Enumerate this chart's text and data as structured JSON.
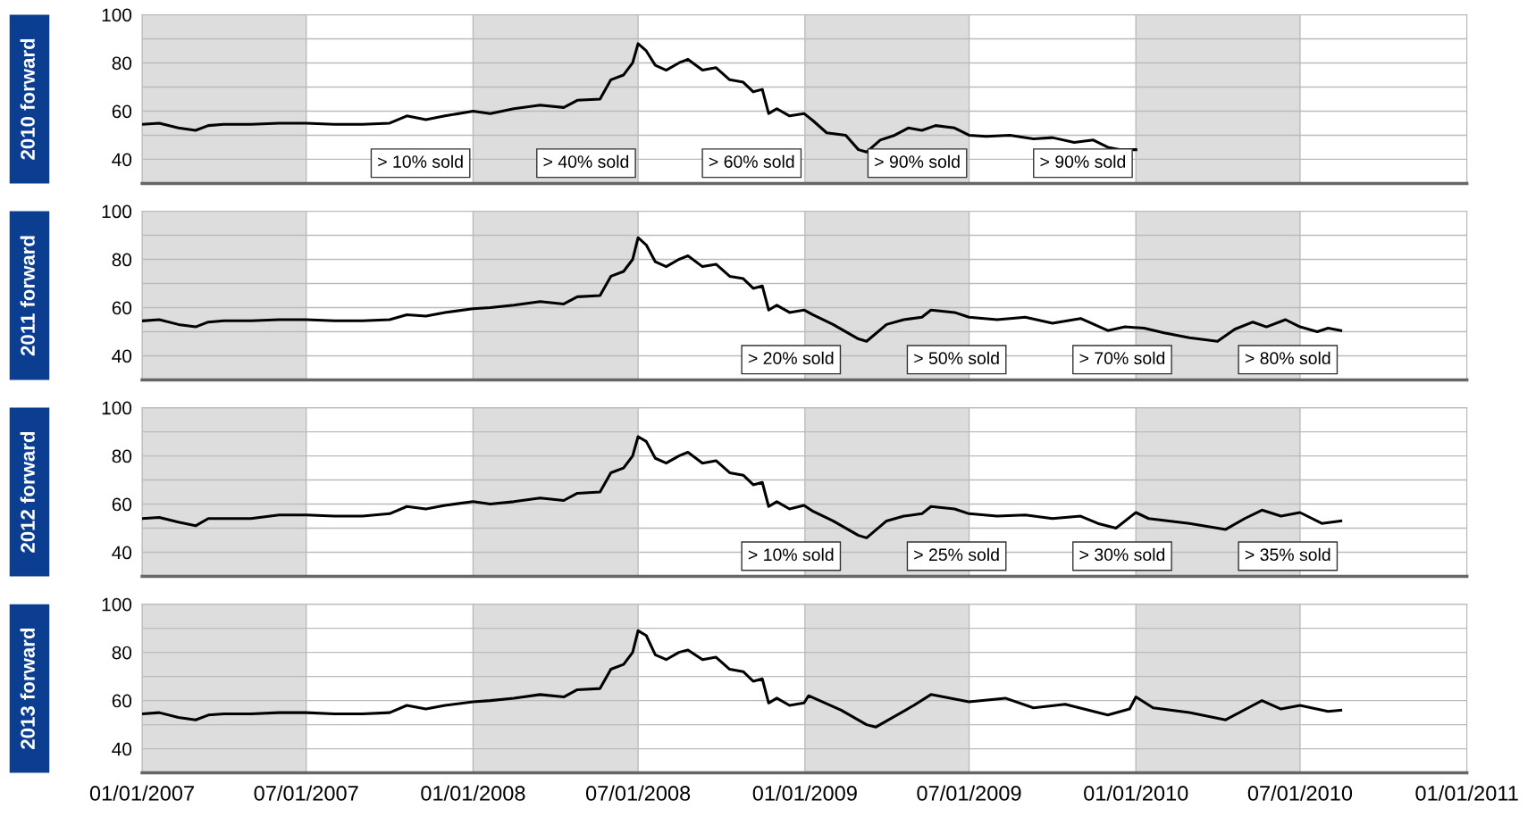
{
  "chart_data": [
    {
      "type": "line",
      "ylabel": "2010 forward",
      "xlim": [
        "2007-01-01",
        "2011-01-01"
      ],
      "ylim": [
        30,
        100
      ],
      "grid": true,
      "tick_labels": "y",
      "marker": "none",
      "line_style": "solid",
      "yticks": [
        40,
        {
          "value": 50,
          "label": null
        },
        60,
        {
          "value": 70,
          "label": null
        },
        80,
        {
          "value": 90,
          "label": null
        },
        100
      ],
      "xticks": [
        {
          "value": "2007-01-01",
          "label": null
        },
        {
          "value": "2007-07-01",
          "label": null
        },
        {
          "value": "2008-01-01",
          "label": null
        },
        {
          "value": "2008-07-01",
          "label": null
        },
        {
          "value": "2009-01-01",
          "label": null
        },
        {
          "value": "2009-07-01",
          "label": null
        },
        {
          "value": "2010-01-01",
          "label": null
        },
        {
          "value": "2010-07-01",
          "label": null
        },
        {
          "value": "2011-01-01",
          "label": null
        }
      ],
      "bands": [
        {
          "axis": "x",
          "from": "2007-01-01",
          "to": "2007-07-01",
          "color": "#dddddd"
        },
        {
          "axis": "x",
          "from": "2008-01-01",
          "to": "2008-07-01",
          "color": "#dddddd"
        },
        {
          "axis": "x",
          "from": "2009-01-01",
          "to": "2009-07-01",
          "color": "#dddddd"
        },
        {
          "axis": "x",
          "from": "2010-01-01",
          "to": "2010-07-01",
          "color": "#dddddd"
        }
      ],
      "annotations": [
        "> 10% sold",
        "> 40% sold",
        "> 60% sold",
        "> 90% sold",
        "> 90% sold"
      ],
      "series": [
        {
          "color": "#000000",
          "x": [
            "2007-01-01",
            "2007-01-20",
            "2007-02-10",
            "2007-03-01",
            "2007-03-15",
            "2007-04-01",
            "2007-05-01",
            "2007-06-01",
            "2007-07-01",
            "2007-08-01",
            "2007-09-01",
            "2007-10-01",
            "2007-10-20",
            "2007-11-10",
            "2007-12-01",
            "2008-01-01",
            "2008-01-20",
            "2008-02-15",
            "2008-03-15",
            "2008-04-10",
            "2008-04-25",
            "2008-05-20",
            "2008-06-01",
            "2008-06-15",
            "2008-06-25",
            "2008-07-01",
            "2008-07-10",
            "2008-07-20",
            "2008-08-01",
            "2008-08-15",
            "2008-08-25",
            "2008-09-10",
            "2008-09-25",
            "2008-10-10",
            "2008-10-25",
            "2008-11-05",
            "2008-11-15",
            "2008-11-22",
            "2008-12-01",
            "2008-12-15",
            "2008-12-31",
            "2009-01-10",
            "2009-01-25",
            "2009-02-15",
            "2009-03-01",
            "2009-03-10",
            "2009-03-25",
            "2009-04-10",
            "2009-04-25",
            "2009-05-10",
            "2009-05-25",
            "2009-06-15",
            "2009-07-01",
            "2009-07-20",
            "2009-08-15",
            "2009-09-10",
            "2009-10-01",
            "2009-10-25",
            "2009-11-15",
            "2009-12-01",
            "2009-12-15",
            "2010-01-01"
          ],
          "values": [
            54.5,
            55,
            53,
            52,
            54,
            54.5,
            54.5,
            55,
            55,
            54.5,
            54.5,
            55,
            58,
            56.5,
            58,
            60,
            59,
            61,
            62.5,
            61.5,
            64.5,
            65,
            73,
            75,
            80,
            88,
            85,
            79,
            77,
            80,
            81.5,
            77,
            78,
            73,
            72,
            68,
            69,
            59,
            61,
            58,
            59,
            56,
            51,
            50,
            44,
            43,
            48,
            50,
            53,
            52,
            54,
            53,
            50,
            49.5,
            50,
            48.5,
            49,
            47,
            48,
            45,
            44,
            44
          ]
        }
      ]
    },
    {
      "type": "line",
      "ylabel": "2011 forward",
      "xlim": [
        "2007-01-01",
        "2011-01-01"
      ],
      "ylim": [
        30,
        100
      ],
      "grid": true,
      "tick_labels": "y",
      "marker": "none",
      "line_style": "solid",
      "yticks": [
        40,
        {
          "value": 50,
          "label": null
        },
        60,
        {
          "value": 70,
          "label": null
        },
        80,
        {
          "value": 90,
          "label": null
        },
        100
      ],
      "xticks": [
        {
          "value": "2007-01-01",
          "label": null
        },
        {
          "value": "2007-07-01",
          "label": null
        },
        {
          "value": "2008-01-01",
          "label": null
        },
        {
          "value": "2008-07-01",
          "label": null
        },
        {
          "value": "2009-01-01",
          "label": null
        },
        {
          "value": "2009-07-01",
          "label": null
        },
        {
          "value": "2010-01-01",
          "label": null
        },
        {
          "value": "2010-07-01",
          "label": null
        },
        {
          "value": "2011-01-01",
          "label": null
        }
      ],
      "bands": [
        {
          "axis": "x",
          "from": "2007-01-01",
          "to": "2007-07-01",
          "color": "#dddddd"
        },
        {
          "axis": "x",
          "from": "2008-01-01",
          "to": "2008-07-01",
          "color": "#dddddd"
        },
        {
          "axis": "x",
          "from": "2009-01-01",
          "to": "2009-07-01",
          "color": "#dddddd"
        },
        {
          "axis": "x",
          "from": "2010-01-01",
          "to": "2010-07-01",
          "color": "#dddddd"
        }
      ],
      "annotations": [
        "> 20% sold",
        "> 50% sold",
        "> 70% sold",
        "> 80% sold"
      ],
      "series": [
        {
          "color": "#000000",
          "x": [
            "2007-01-01",
            "2007-01-20",
            "2007-02-10",
            "2007-03-01",
            "2007-03-15",
            "2007-04-01",
            "2007-05-01",
            "2007-06-01",
            "2007-07-01",
            "2007-08-01",
            "2007-09-01",
            "2007-10-01",
            "2007-10-20",
            "2007-11-10",
            "2007-12-01",
            "2008-01-01",
            "2008-01-20",
            "2008-02-15",
            "2008-03-15",
            "2008-04-10",
            "2008-04-25",
            "2008-05-20",
            "2008-06-01",
            "2008-06-15",
            "2008-06-25",
            "2008-07-01",
            "2008-07-10",
            "2008-07-20",
            "2008-08-01",
            "2008-08-15",
            "2008-08-25",
            "2008-09-10",
            "2008-09-25",
            "2008-10-10",
            "2008-10-25",
            "2008-11-05",
            "2008-11-15",
            "2008-11-22",
            "2008-12-01",
            "2008-12-15",
            "2008-12-31",
            "2009-01-10",
            "2009-02-01",
            "2009-03-01",
            "2009-03-10",
            "2009-04-01",
            "2009-04-20",
            "2009-05-10",
            "2009-05-20",
            "2009-06-15",
            "2009-07-01",
            "2009-08-01",
            "2009-09-01",
            "2009-10-01",
            "2009-11-01",
            "2009-12-01",
            "2009-12-20",
            "2010-01-10",
            "2010-02-01",
            "2010-03-01",
            "2010-04-01",
            "2010-04-20",
            "2010-05-10",
            "2010-05-25",
            "2010-06-15",
            "2010-07-01",
            "2010-07-20",
            "2010-08-01",
            "2010-08-15"
          ],
          "values": [
            54.5,
            55,
            53,
            52,
            54,
            54.5,
            54.5,
            55,
            55,
            54.5,
            54.5,
            55,
            57,
            56.5,
            58,
            59.5,
            60,
            61,
            62.5,
            61.5,
            64.5,
            65,
            73,
            75,
            80,
            89,
            86,
            79,
            77,
            80,
            81.5,
            77,
            78,
            73,
            72,
            68,
            69,
            59,
            61,
            58,
            59,
            57,
            53,
            47,
            46,
            53,
            55,
            56,
            59,
            58,
            56,
            55,
            56,
            53.5,
            55.5,
            50.5,
            52,
            51.5,
            49.5,
            47.5,
            46,
            51,
            54,
            52,
            55,
            52,
            50,
            51.5,
            50.5
          ]
        }
      ]
    },
    {
      "type": "line",
      "ylabel": "2012 forward",
      "xlim": [
        "2007-01-01",
        "2011-01-01"
      ],
      "ylim": [
        30,
        100
      ],
      "grid": true,
      "tick_labels": "y",
      "marker": "none",
      "line_style": "solid",
      "yticks": [
        40,
        {
          "value": 50,
          "label": null
        },
        60,
        {
          "value": 70,
          "label": null
        },
        80,
        {
          "value": 90,
          "label": null
        },
        100
      ],
      "xticks": [
        {
          "value": "2007-01-01",
          "label": null
        },
        {
          "value": "2007-07-01",
          "label": null
        },
        {
          "value": "2008-01-01",
          "label": null
        },
        {
          "value": "2008-07-01",
          "label": null
        },
        {
          "value": "2009-01-01",
          "label": null
        },
        {
          "value": "2009-07-01",
          "label": null
        },
        {
          "value": "2010-01-01",
          "label": null
        },
        {
          "value": "2010-07-01",
          "label": null
        },
        {
          "value": "2011-01-01",
          "label": null
        }
      ],
      "bands": [
        {
          "axis": "x",
          "from": "2007-01-01",
          "to": "2007-07-01",
          "color": "#dddddd"
        },
        {
          "axis": "x",
          "from": "2008-01-01",
          "to": "2008-07-01",
          "color": "#dddddd"
        },
        {
          "axis": "x",
          "from": "2009-01-01",
          "to": "2009-07-01",
          "color": "#dddddd"
        },
        {
          "axis": "x",
          "from": "2010-01-01",
          "to": "2010-07-01",
          "color": "#dddddd"
        }
      ],
      "annotations": [
        "> 10% sold",
        "> 25% sold",
        "> 30% sold",
        "> 35% sold"
      ],
      "series": [
        {
          "color": "#000000",
          "x": [
            "2007-01-01",
            "2007-01-20",
            "2007-02-10",
            "2007-03-01",
            "2007-03-15",
            "2007-04-01",
            "2007-05-01",
            "2007-06-01",
            "2007-07-01",
            "2007-08-01",
            "2007-09-01",
            "2007-10-01",
            "2007-10-20",
            "2007-11-10",
            "2007-12-01",
            "2008-01-01",
            "2008-01-20",
            "2008-02-15",
            "2008-03-15",
            "2008-04-10",
            "2008-04-25",
            "2008-05-20",
            "2008-06-01",
            "2008-06-15",
            "2008-06-25",
            "2008-07-01",
            "2008-07-10",
            "2008-07-20",
            "2008-08-01",
            "2008-08-15",
            "2008-08-25",
            "2008-09-10",
            "2008-09-25",
            "2008-10-10",
            "2008-10-25",
            "2008-11-05",
            "2008-11-15",
            "2008-11-22",
            "2008-12-01",
            "2008-12-15",
            "2008-12-31",
            "2009-01-10",
            "2009-02-01",
            "2009-03-01",
            "2009-03-10",
            "2009-04-01",
            "2009-04-20",
            "2009-05-10",
            "2009-05-20",
            "2009-06-15",
            "2009-07-01",
            "2009-08-01",
            "2009-09-01",
            "2009-10-01",
            "2009-11-01",
            "2009-11-20",
            "2009-12-10",
            "2010-01-01",
            "2010-01-15",
            "2010-03-01",
            "2010-04-10",
            "2010-05-01",
            "2010-05-20",
            "2010-06-10",
            "2010-07-01",
            "2010-07-25",
            "2010-08-15"
          ],
          "values": [
            54,
            54.5,
            52.5,
            51,
            54,
            54,
            54,
            55.5,
            55.5,
            55,
            55,
            56,
            59,
            58,
            59.5,
            61,
            60,
            61,
            62.5,
            61.5,
            64.5,
            65,
            73,
            75,
            80,
            88,
            86,
            79,
            77,
            80,
            81.5,
            77,
            78,
            73,
            72,
            68,
            69,
            59,
            61,
            58,
            59.5,
            57,
            53,
            47,
            46,
            53,
            55,
            56,
            59,
            58,
            56,
            55,
            55.5,
            54,
            55,
            52,
            50,
            56.5,
            54,
            52,
            49.5,
            54,
            57.5,
            55,
            56.5,
            52,
            53
          ]
        }
      ]
    },
    {
      "type": "line",
      "ylabel": "2013 forward",
      "xlim": [
        "2007-01-01",
        "2011-01-01"
      ],
      "ylim": [
        30,
        100
      ],
      "grid": true,
      "marker": "none",
      "line_style": "solid",
      "yticks": [
        40,
        {
          "value": 50,
          "label": null
        },
        60,
        {
          "value": 70,
          "label": null
        },
        80,
        {
          "value": 90,
          "label": null
        },
        100
      ],
      "xticks": [
        {
          "value": "2007-01-01",
          "label": "01/01/2007"
        },
        {
          "value": "2007-07-01",
          "label": "07/01/2007"
        },
        {
          "value": "2008-01-01",
          "label": "01/01/2008"
        },
        {
          "value": "2008-07-01",
          "label": "07/01/2008"
        },
        {
          "value": "2009-01-01",
          "label": "01/01/2009"
        },
        {
          "value": "2009-07-01",
          "label": "07/01/2009"
        },
        {
          "value": "2010-01-01",
          "label": "01/01/2010"
        },
        {
          "value": "2010-07-01",
          "label": "07/01/2010"
        },
        {
          "value": "2011-01-01",
          "label": "01/01/2011"
        }
      ],
      "bands": [
        {
          "axis": "x",
          "from": "2007-01-01",
          "to": "2007-07-01",
          "color": "#dddddd"
        },
        {
          "axis": "x",
          "from": "2008-01-01",
          "to": "2008-07-01",
          "color": "#dddddd"
        },
        {
          "axis": "x",
          "from": "2009-01-01",
          "to": "2009-07-01",
          "color": "#dddddd"
        },
        {
          "axis": "x",
          "from": "2010-01-01",
          "to": "2010-07-01",
          "color": "#dddddd"
        }
      ],
      "series": [
        {
          "color": "#000000",
          "x": [
            "2007-01-01",
            "2007-01-20",
            "2007-02-10",
            "2007-03-01",
            "2007-03-15",
            "2007-04-01",
            "2007-05-01",
            "2007-06-01",
            "2007-07-01",
            "2007-08-01",
            "2007-09-01",
            "2007-10-01",
            "2007-10-20",
            "2007-11-10",
            "2007-12-01",
            "2008-01-01",
            "2008-01-20",
            "2008-02-15",
            "2008-03-15",
            "2008-04-10",
            "2008-04-25",
            "2008-05-20",
            "2008-06-01",
            "2008-06-15",
            "2008-06-25",
            "2008-07-01",
            "2008-07-10",
            "2008-07-20",
            "2008-08-01",
            "2008-08-15",
            "2008-08-25",
            "2008-09-10",
            "2008-09-25",
            "2008-10-10",
            "2008-10-25",
            "2008-11-05",
            "2008-11-15",
            "2008-11-22",
            "2008-12-01",
            "2008-12-15",
            "2008-12-31",
            "2009-01-05",
            "2009-02-10",
            "2009-03-10",
            "2009-03-20",
            "2009-05-01",
            "2009-05-20",
            "2009-07-01",
            "2009-08-10",
            "2009-09-10",
            "2009-10-15",
            "2009-12-01",
            "2009-12-25",
            "2010-01-01",
            "2010-01-20",
            "2010-03-01",
            "2010-04-10",
            "2010-05-10",
            "2010-05-20",
            "2010-06-10",
            "2010-07-01",
            "2010-08-01",
            "2010-08-15"
          ],
          "values": [
            54.5,
            55,
            53,
            52,
            54,
            54.5,
            54.5,
            55,
            55,
            54.5,
            54.5,
            55,
            58,
            56.5,
            58,
            59.5,
            60,
            61,
            62.5,
            61.5,
            64.5,
            65,
            73,
            75,
            80,
            89,
            87,
            79,
            77,
            80,
            81,
            77,
            78,
            73,
            72,
            68,
            69,
            59,
            61,
            58,
            59,
            62,
            56,
            50,
            49,
            58,
            62.5,
            59.5,
            61,
            57,
            58.5,
            54,
            56.5,
            61.5,
            57,
            55,
            52,
            58,
            60,
            56.5,
            58,
            55.5,
            56
          ]
        }
      ]
    }
  ]
}
